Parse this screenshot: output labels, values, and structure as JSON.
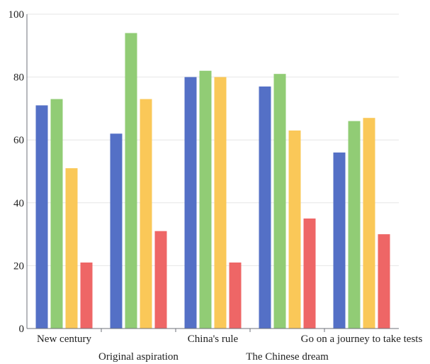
{
  "chart_data": {
    "type": "bar",
    "categories": [
      "New century",
      "Original aspiration",
      "China's rule",
      "The Chinese dream",
      "Go on a journey to take tests"
    ],
    "series": [
      {
        "values": [
          71,
          62,
          80,
          77,
          56
        ],
        "color": "#5470c6"
      },
      {
        "values": [
          73,
          94,
          82,
          81,
          66
        ],
        "color": "#91cc75"
      },
      {
        "values": [
          51,
          73,
          80,
          63,
          67
        ],
        "color": "#fac858"
      },
      {
        "values": [
          21,
          31,
          21,
          35,
          30
        ],
        "color": "#ee6666"
      }
    ],
    "ylim": [
      0,
      100
    ],
    "yticks": [
      "0",
      "20",
      "40",
      "60",
      "80",
      "100"
    ],
    "grid": true,
    "legend": "none",
    "title": "",
    "xlabel": "",
    "ylabel": ""
  }
}
